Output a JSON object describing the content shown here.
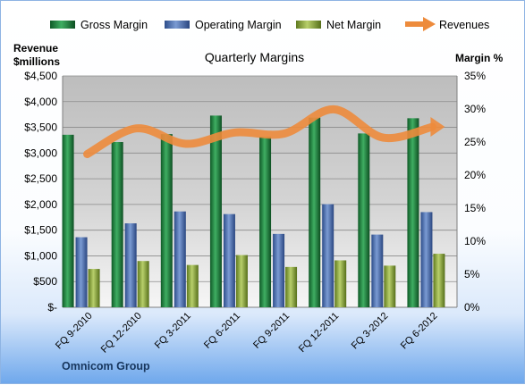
{
  "chart_data": {
    "type": "bar",
    "title": "Quarterly Margins",
    "y_left_label": [
      "Revenue",
      "$millions"
    ],
    "y_right_label": "Margin %",
    "y_left_ticks": [
      "$-",
      "$500",
      "$1,000",
      "$1,500",
      "$2,000",
      "$2,500",
      "$3,000",
      "$3,500",
      "$4,000",
      "$4,500"
    ],
    "y_right_ticks": [
      "0%",
      "5%",
      "10%",
      "15%",
      "20%",
      "25%",
      "30%",
      "35%"
    ],
    "ylim_left": [
      0,
      4500
    ],
    "ylim_right": [
      0,
      35
    ],
    "categories": [
      "FQ 9-2010",
      "FQ 12-2010",
      "FQ 3-2011",
      "FQ 6-2011",
      "FQ 9-2011",
      "FQ 12-2011",
      "FQ 3-2012",
      "FQ 6-2012"
    ],
    "series": [
      {
        "name": "Gross Margin",
        "type": "bar",
        "axis": "right",
        "color": "#1e7a3c",
        "values": [
          26.1,
          25.0,
          26.2,
          29.0,
          25.8,
          28.7,
          26.3,
          28.6
        ]
      },
      {
        "name": "Operating Margin",
        "type": "bar",
        "axis": "right",
        "color": "#4a6fb0",
        "values": [
          10.6,
          12.7,
          14.5,
          14.1,
          11.1,
          15.6,
          11.0,
          14.4
        ]
      },
      {
        "name": "Net Margin",
        "type": "bar",
        "axis": "right",
        "color": "#8fad3c",
        "values": [
          5.8,
          7.0,
          6.4,
          7.9,
          6.1,
          7.1,
          6.3,
          8.1
        ]
      },
      {
        "name": "Revenues",
        "type": "line",
        "axis": "left",
        "color": "#ed8b3c",
        "values": [
          2980,
          3480,
          3180,
          3400,
          3380,
          3850,
          3300,
          3510
        ]
      }
    ],
    "grid": true,
    "legend_position": "top"
  },
  "company": "Omnicom Group"
}
